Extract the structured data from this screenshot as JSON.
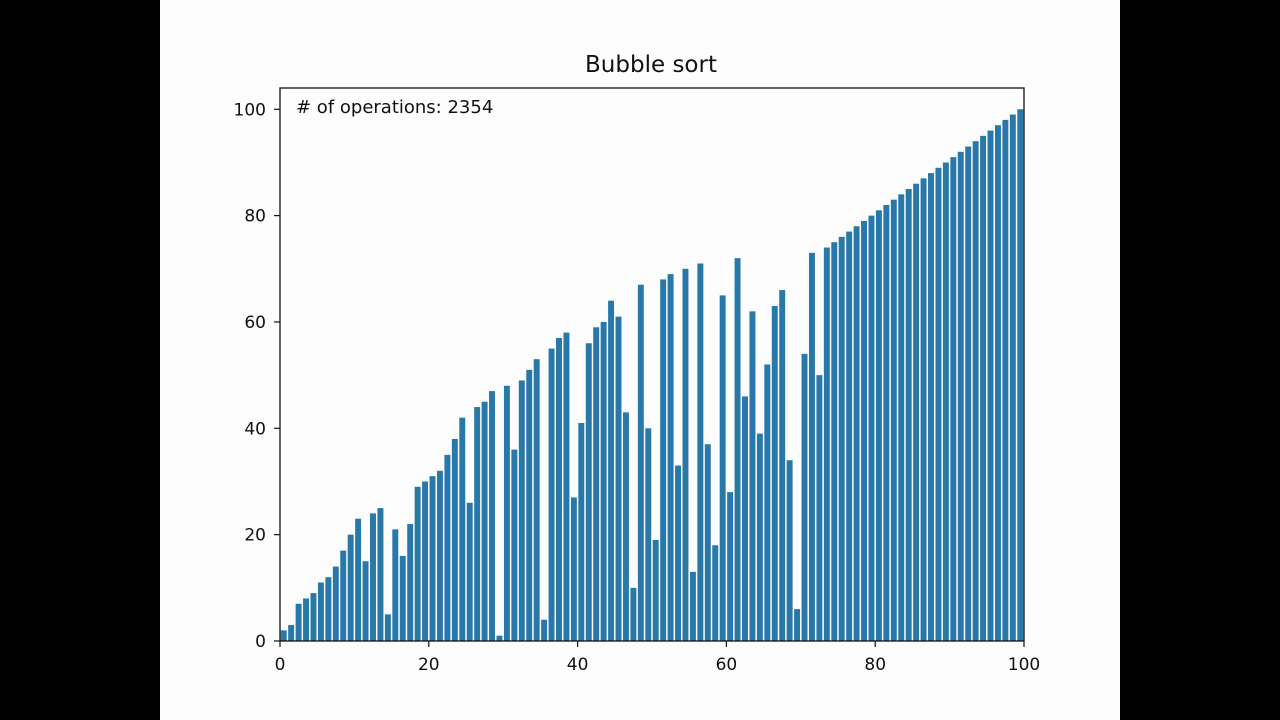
{
  "chart_data": {
    "type": "bar",
    "title": "Bubble sort",
    "annotation": "# of operations: 2354",
    "xlabel": "",
    "ylabel": "",
    "xlim": [
      0,
      100
    ],
    "ylim": [
      0,
      104
    ],
    "xticks": [
      "0",
      "20",
      "40",
      "60",
      "80",
      "100"
    ],
    "yticks": [
      "0",
      "20",
      "40",
      "60",
      "80",
      "100"
    ],
    "bar_color": "#2878a9",
    "grid": false,
    "x": [
      1,
      2,
      3,
      4,
      5,
      6,
      7,
      8,
      9,
      10,
      11,
      12,
      13,
      14,
      15,
      16,
      17,
      18,
      19,
      20,
      21,
      22,
      23,
      24,
      25,
      26,
      27,
      28,
      29,
      30,
      31,
      32,
      33,
      34,
      35,
      36,
      37,
      38,
      39,
      40,
      41,
      42,
      43,
      44,
      45,
      46,
      47,
      48,
      49,
      50,
      51,
      52,
      53,
      54,
      55,
      56,
      57,
      58,
      59,
      60,
      61,
      62,
      63,
      64,
      65,
      66,
      67,
      68,
      69,
      70,
      71,
      72,
      73,
      74,
      75,
      76,
      77,
      78,
      79,
      80,
      81,
      82,
      83,
      84,
      85,
      86,
      87,
      88,
      89,
      90,
      91,
      92,
      93,
      94,
      95,
      96,
      97,
      98,
      99,
      100
    ],
    "values": [
      2,
      3,
      7,
      8,
      9,
      11,
      12,
      14,
      17,
      20,
      23,
      15,
      24,
      25,
      5,
      21,
      16,
      22,
      29,
      30,
      31,
      32,
      35,
      38,
      42,
      26,
      44,
      45,
      47,
      1,
      48,
      36,
      49,
      51,
      53,
      4,
      55,
      57,
      58,
      27,
      41,
      56,
      59,
      60,
      64,
      61,
      43,
      10,
      67,
      40,
      19,
      68,
      69,
      33,
      70,
      13,
      71,
      37,
      18,
      65,
      28,
      72,
      46,
      62,
      39,
      52,
      63,
      66,
      34,
      6,
      54,
      73,
      50,
      74,
      75,
      76,
      77,
      78,
      79,
      80,
      81,
      82,
      83,
      84,
      85,
      86,
      87,
      88,
      89,
      90,
      91,
      92,
      93,
      94,
      95,
      96,
      97,
      98,
      99,
      100
    ]
  }
}
